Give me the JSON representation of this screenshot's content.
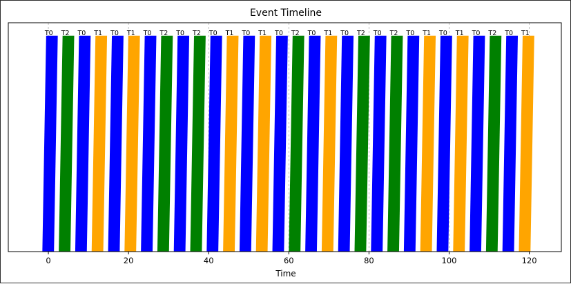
{
  "chart_data": {
    "type": "bar",
    "title": "Event Timeline",
    "xlabel": "Time",
    "ylabel": "",
    "xlim": [
      -10,
      128
    ],
    "ylim": [
      0,
      1.06
    ],
    "grid": "x-dashed",
    "x_ticks": [
      0,
      20,
      40,
      60,
      80,
      100,
      120
    ],
    "bar_width": 2.9,
    "bar_skew": 0.95,
    "events": [
      {
        "x": 0.9,
        "value": 1,
        "label": "T0",
        "color": "#0000ff"
      },
      {
        "x": 5.0,
        "value": 1,
        "label": "T2",
        "color": "#008000"
      },
      {
        "x": 9.1,
        "value": 1,
        "label": "T0",
        "color": "#0000ff"
      },
      {
        "x": 13.2,
        "value": 1,
        "label": "T1",
        "color": "#ffa500"
      },
      {
        "x": 17.3,
        "value": 1,
        "label": "T0",
        "color": "#0000ff"
      },
      {
        "x": 21.4,
        "value": 1,
        "label": "T1",
        "color": "#ffa500"
      },
      {
        "x": 25.5,
        "value": 1,
        "label": "T0",
        "color": "#0000ff"
      },
      {
        "x": 29.6,
        "value": 1,
        "label": "T2",
        "color": "#008000"
      },
      {
        "x": 33.7,
        "value": 1,
        "label": "T0",
        "color": "#0000ff"
      },
      {
        "x": 37.8,
        "value": 1,
        "label": "T2",
        "color": "#008000"
      },
      {
        "x": 41.9,
        "value": 1,
        "label": "T0",
        "color": "#0000ff"
      },
      {
        "x": 46.0,
        "value": 1,
        "label": "T1",
        "color": "#ffa500"
      },
      {
        "x": 50.1,
        "value": 1,
        "label": "T0",
        "color": "#0000ff"
      },
      {
        "x": 54.2,
        "value": 1,
        "label": "T1",
        "color": "#ffa500"
      },
      {
        "x": 58.3,
        "value": 1,
        "label": "T0",
        "color": "#0000ff"
      },
      {
        "x": 62.4,
        "value": 1,
        "label": "T2",
        "color": "#008000"
      },
      {
        "x": 66.5,
        "value": 1,
        "label": "T0",
        "color": "#0000ff"
      },
      {
        "x": 70.6,
        "value": 1,
        "label": "T1",
        "color": "#ffa500"
      },
      {
        "x": 74.7,
        "value": 1,
        "label": "T0",
        "color": "#0000ff"
      },
      {
        "x": 78.8,
        "value": 1,
        "label": "T2",
        "color": "#008000"
      },
      {
        "x": 82.9,
        "value": 1,
        "label": "T0",
        "color": "#0000ff"
      },
      {
        "x": 87.0,
        "value": 1,
        "label": "T2",
        "color": "#008000"
      },
      {
        "x": 91.1,
        "value": 1,
        "label": "T0",
        "color": "#0000ff"
      },
      {
        "x": 95.2,
        "value": 1,
        "label": "T1",
        "color": "#ffa500"
      },
      {
        "x": 99.3,
        "value": 1,
        "label": "T0",
        "color": "#0000ff"
      },
      {
        "x": 103.4,
        "value": 1,
        "label": "T1",
        "color": "#ffa500"
      },
      {
        "x": 107.5,
        "value": 1,
        "label": "T0",
        "color": "#0000ff"
      },
      {
        "x": 111.6,
        "value": 1,
        "label": "T2",
        "color": "#008000"
      },
      {
        "x": 115.7,
        "value": 1,
        "label": "T0",
        "color": "#0000ff"
      },
      {
        "x": 119.8,
        "value": 1,
        "label": "T1",
        "color": "#ffa500"
      }
    ]
  }
}
